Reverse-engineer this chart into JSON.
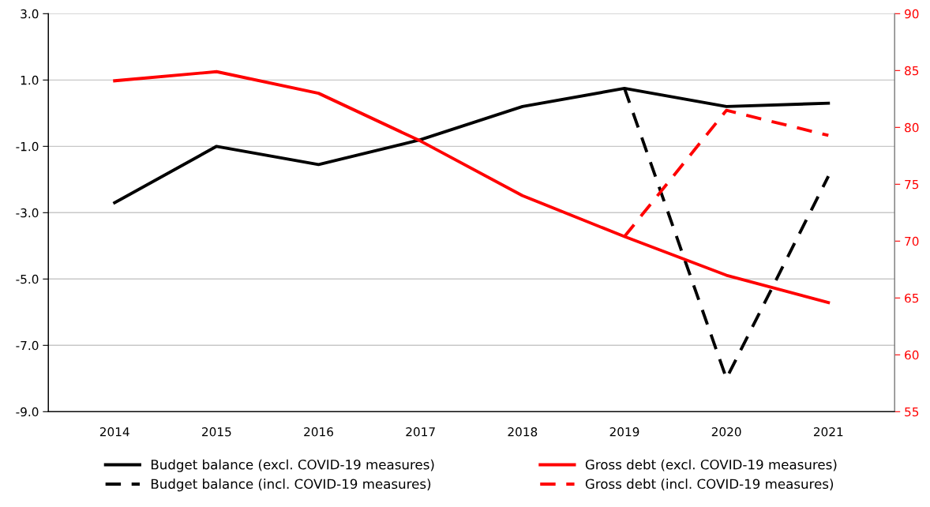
{
  "chart_data": {
    "type": "line",
    "categories": [
      "2014",
      "2015",
      "2016",
      "2017",
      "2018",
      "2019",
      "2020",
      "2021"
    ],
    "series": [
      {
        "name": "Budget balance (excl. COVID-19 measures)",
        "color": "#000000",
        "line_style": "solid",
        "values": [
          -2.7,
          -1.0,
          -1.55,
          -0.8,
          0.2,
          0.75,
          0.2,
          0.3
        ]
      },
      {
        "name": "Budget balance (incl. COVID-19 measures)",
        "color": "#000000",
        "line_style": "dashed",
        "values": [
          null,
          null,
          null,
          null,
          null,
          0.75,
          -8.0,
          -1.9
        ]
      },
      {
        "name": "Gross debt (excl. COVID-19 measures)",
        "color": "#ff0000",
        "line_style": "solid",
        "axis": "y2",
        "values": [
          84.1,
          84.9,
          83.0,
          78.8,
          74.0,
          70.4,
          67.0,
          64.6
        ]
      },
      {
        "name": "Gross debt (incl. COVID-19 measures)",
        "color": "#ff0000",
        "line_style": "dashed",
        "axis": "y2",
        "values": [
          null,
          null,
          null,
          null,
          null,
          70.4,
          81.5,
          79.3
        ]
      }
    ],
    "ylim": [
      -9.0,
      3.0
    ],
    "yticks": [
      {
        "value": -9,
        "label": "-9.0"
      },
      {
        "value": -7,
        "label": "-7.0"
      },
      {
        "value": -5,
        "label": "-5.0"
      },
      {
        "value": -3,
        "label": "-3.0"
      },
      {
        "value": -1,
        "label": "-1.0"
      },
      {
        "value": 1,
        "label": "1.0"
      },
      {
        "value": 3,
        "label": "3.0"
      }
    ],
    "y2lim": [
      55,
      90
    ],
    "y2ticks": [
      55,
      60,
      65,
      70,
      75,
      80,
      85,
      90
    ],
    "grid": "y",
    "legend": "bottom"
  }
}
